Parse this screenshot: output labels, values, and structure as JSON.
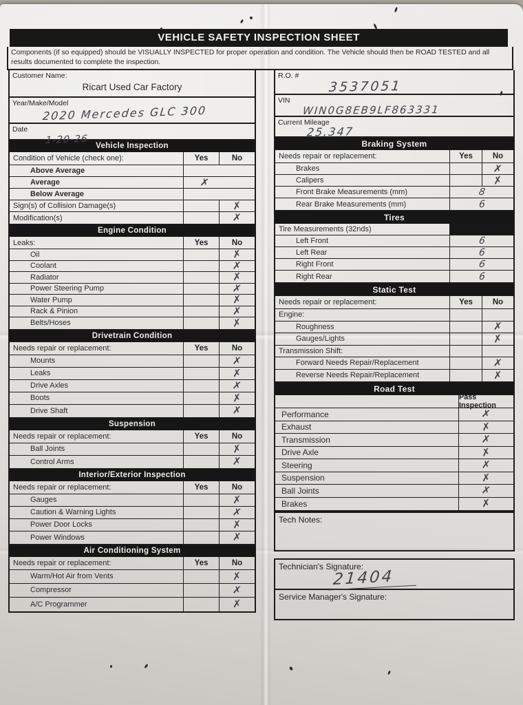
{
  "page": {
    "title": "VEHICLE SAFETY INSPECTION SHEET",
    "instructions": "Components (if so equipped) should be VISUALLY INSPECTED for proper operation and condition. The Vehicle should then be ROAD TESTED and all results documented to complete the inspection."
  },
  "marks": {
    "x": "✗"
  },
  "customer": {
    "label": "Customer Name:",
    "value": "Ricart Used Car Factory"
  },
  "year_make_model": {
    "label": "Year/Make/Model",
    "value": "2020  Mercedes   GLC 300"
  },
  "date": {
    "label": "Date",
    "value": "1-20-26"
  },
  "ro": {
    "label": "R.O. #",
    "value": "3537051"
  },
  "vin": {
    "label": "VIN",
    "value": "WIN0G8EB9LF863331"
  },
  "mileage": {
    "label": "Current Mileage",
    "value": "25,347"
  },
  "left_sections": [
    {
      "title": "Vehicle Inspection",
      "kind": "yesno",
      "header": {
        "label": "Condition of Vehicle (check one):",
        "yes": "Yes",
        "no": "No"
      },
      "rows": [
        {
          "label": "Above Average",
          "indent": true,
          "bold": true,
          "merged": true,
          "mark": ""
        },
        {
          "label": "Average",
          "indent": true,
          "bold": true,
          "merged": true,
          "mark": "yes"
        },
        {
          "label": "Below Average",
          "indent": true,
          "bold": true,
          "merged": true,
          "mark": ""
        },
        {
          "label": "Sign(s) of Collision Damage(s)",
          "mark": "no"
        },
        {
          "label": "Modification(s)",
          "mark": "no"
        }
      ]
    },
    {
      "title": "Engine Condition",
      "kind": "yesno",
      "header": {
        "label": "Leaks:",
        "yes": "Yes",
        "no": "No"
      },
      "rows": [
        {
          "label": "Oil",
          "indent": true,
          "mark": "no"
        },
        {
          "label": "Coolant",
          "indent": true,
          "mark": "no"
        },
        {
          "label": "Radiator",
          "indent": true,
          "mark": "no"
        },
        {
          "label": "Power Steering Pump",
          "indent": true,
          "mark": "no"
        },
        {
          "label": "Water Pump",
          "indent": true,
          "mark": "no"
        },
        {
          "label": "Rack & Pinion",
          "indent": true,
          "mark": "no"
        },
        {
          "label": "Belts/Hoses",
          "indent": true,
          "mark": "no"
        }
      ]
    },
    {
      "title": "Drivetrain Condition",
      "kind": "yesno",
      "header": {
        "label": "Needs repair or replacement:",
        "yes": "Yes",
        "no": "No"
      },
      "rows": [
        {
          "label": "Mounts",
          "indent": true,
          "mark": "no"
        },
        {
          "label": "Leaks",
          "indent": true,
          "mark": "no"
        },
        {
          "label": "Drive Axles",
          "indent": true,
          "mark": "no"
        },
        {
          "label": "Boots",
          "indent": true,
          "mark": "no"
        },
        {
          "label": "Drive Shaft",
          "indent": true,
          "mark": "no"
        }
      ]
    },
    {
      "title": "Suspension",
      "kind": "yesno",
      "header": {
        "label": "Needs repair or replacement:",
        "yes": "Yes",
        "no": "No"
      },
      "rows": [
        {
          "label": "Ball Joints",
          "indent": true,
          "mark": "no"
        },
        {
          "label": "Control Arms",
          "indent": true,
          "mark": "no"
        }
      ]
    },
    {
      "title": "Interior/Exterior Inspection",
      "kind": "yesno",
      "header": {
        "label": "Needs repair or replacement:",
        "yes": "Yes",
        "no": "No"
      },
      "rows": [
        {
          "label": "Gauges",
          "indent": true,
          "mark": "no"
        },
        {
          "label": "Caution & Warning Lights",
          "indent": true,
          "mark": "no"
        },
        {
          "label": "Power Door Locks",
          "indent": true,
          "mark": "no"
        },
        {
          "label": "Power Windows",
          "indent": true,
          "mark": "no"
        }
      ]
    },
    {
      "title": "Air Conditioning System",
      "kind": "yesno",
      "header": {
        "label": "Needs repair or replacement:",
        "yes": "Yes",
        "no": "No"
      },
      "rows": [
        {
          "label": "Warm/Hot Air from Vents",
          "indent": true,
          "mark": "no"
        },
        {
          "label": "Compressor",
          "indent": true,
          "mark": "no"
        },
        {
          "label": "A/C Programmer",
          "indent": true,
          "mark": "no"
        }
      ]
    }
  ],
  "right_sections": [
    {
      "title": "Braking System",
      "kind": "yesno",
      "header": {
        "label": "Needs repair or replacement:",
        "yes": "Yes",
        "no": "No"
      },
      "rows": [
        {
          "label": "Brakes",
          "indent": true,
          "mark": "no"
        },
        {
          "label": "Calipers",
          "indent": true,
          "mark": "no"
        },
        {
          "label": "Front Brake Measurements (mm)",
          "indent": true,
          "merged": true,
          "value": "8"
        },
        {
          "label": "Rear Brake Measurements (mm)",
          "indent": true,
          "merged": true,
          "value": "6"
        }
      ]
    },
    {
      "title": "Tires",
      "kind": "yesno",
      "header": {
        "label": "Tire Measurements (32nds)",
        "filler": true
      },
      "rows": [
        {
          "label": "Left Front",
          "indent": true,
          "merged": true,
          "value": "6"
        },
        {
          "label": "Left Rear",
          "indent": true,
          "merged": true,
          "value": "6"
        },
        {
          "label": "Right Front",
          "indent": true,
          "merged": true,
          "value": "6"
        },
        {
          "label": "Right Rear",
          "indent": true,
          "merged": true,
          "value": "6"
        }
      ]
    },
    {
      "title": "Static Test",
      "kind": "yesno",
      "header": {
        "label": "Needs repair or replacement:",
        "yes": "Yes",
        "no": "No"
      },
      "rows": [
        {
          "label": "Engine:",
          "group": true,
          "mark": ""
        },
        {
          "label": "Roughness",
          "indent": true,
          "mark": "no"
        },
        {
          "label": "Gauges/Lights",
          "indent": true,
          "mark": "no"
        },
        {
          "label": "Transmission Shift:",
          "group": true,
          "mark": ""
        },
        {
          "label": "Forward Needs Repair/Replacement",
          "indent": true,
          "mark": "no"
        },
        {
          "label": "Reverse Needs Repair/Replacement",
          "indent": true,
          "mark": "no"
        }
      ]
    },
    {
      "title": "Road Test",
      "kind": "road",
      "header": {
        "label": "",
        "pass": "Pass Inspection"
      },
      "rows": [
        {
          "label": "Performance",
          "mark": "pass"
        },
        {
          "label": "Exhaust",
          "mark": "pass"
        },
        {
          "label": "Transmission",
          "mark": "pass"
        },
        {
          "label": "Drive Axle",
          "mark": "pass"
        },
        {
          "label": "Steering",
          "mark": "pass"
        },
        {
          "label": "Suspension",
          "mark": "pass"
        },
        {
          "label": "Ball Joints",
          "mark": "pass"
        },
        {
          "label": "Brakes",
          "mark": "pass"
        }
      ]
    }
  ],
  "tech_notes": {
    "label": "Tech Notes:",
    "value": ""
  },
  "technician_signature": {
    "label": "Technician's Signature:",
    "value": "21404"
  },
  "manager_signature": {
    "label": "Service Manager's Signature:",
    "value": ""
  }
}
